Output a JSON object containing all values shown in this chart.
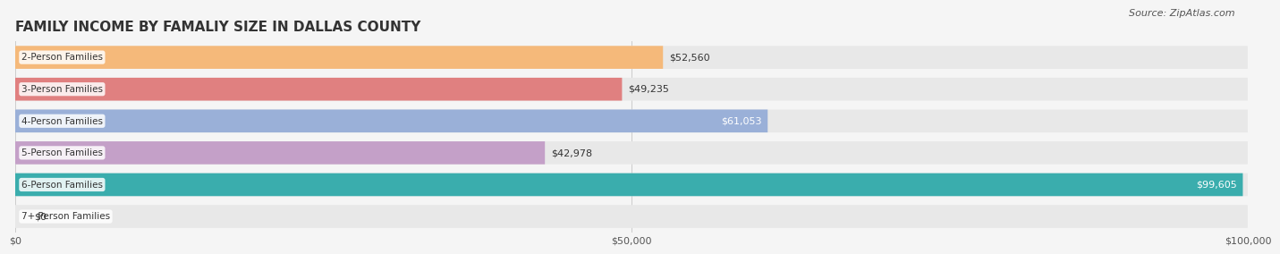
{
  "title": "FAMILY INCOME BY FAMALIY SIZE IN DALLAS COUNTY",
  "source": "Source: ZipAtlas.com",
  "categories": [
    "2-Person Families",
    "3-Person Families",
    "4-Person Families",
    "5-Person Families",
    "6-Person Families",
    "7+ Person Families"
  ],
  "values": [
    52560,
    49235,
    61053,
    42978,
    99605,
    0
  ],
  "bar_colors": [
    "#f5b97a",
    "#e08080",
    "#9ab0d8",
    "#c4a0c8",
    "#3aadad",
    "#c8d0f0"
  ],
  "label_colors": [
    "#333333",
    "#333333",
    "#ffffff",
    "#333333",
    "#ffffff",
    "#333333"
  ],
  "x_max": 100000,
  "x_ticks": [
    0,
    50000,
    100000
  ],
  "x_tick_labels": [
    "$0",
    "$50,000",
    "$100,000"
  ],
  "background_color": "#f5f5f5",
  "bar_bg_color": "#e8e8e8",
  "title_fontsize": 11,
  "source_fontsize": 8,
  "bar_label_fontsize": 8,
  "category_fontsize": 7.5
}
